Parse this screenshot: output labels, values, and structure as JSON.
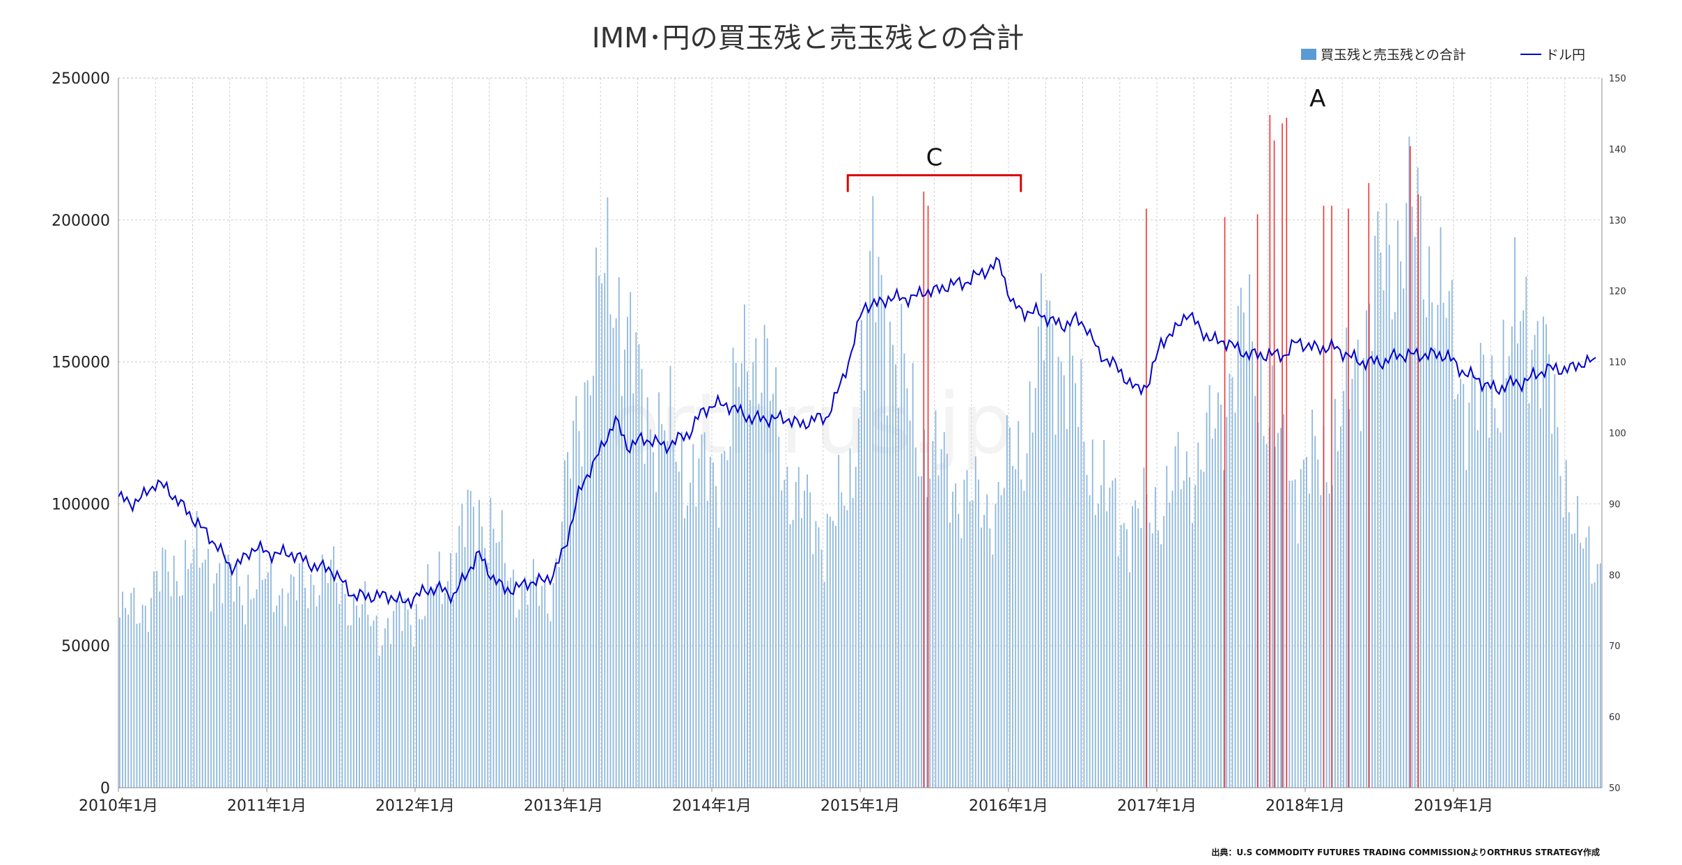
{
  "chart_data": {
    "type": "bar",
    "title": "IMM･円の買玉残と売玉残との合計",
    "source": "出典：U.S COMMODITY FUTURES TRADING COMMISSIONよりORTHRUS STRATEGY作成",
    "watermark": "orthrus.jp",
    "legend": [
      {
        "name": "買玉残と売玉残との合計",
        "color": "#5b9bd5",
        "kind": "bar"
      },
      {
        "name": "ドル円",
        "color": "#0000cc",
        "kind": "line"
      }
    ],
    "colors": {
      "bar": "#8fb8de",
      "highlight": "#ee3333",
      "line": "#0000cc",
      "bracket": "#dd0000"
    },
    "x": {
      "start": "2010-01",
      "end": "2019-12",
      "weeks": 520
    },
    "x_tick_labels": [
      "2010年1月",
      "2011年1月",
      "2012年1月",
      "2013年1月",
      "2014年1月",
      "2015年1月",
      "2016年1月",
      "2017年1月",
      "2018年1月",
      "2019年1月"
    ],
    "y_left": {
      "min": 0,
      "max": 250000,
      "ticks": [
        "0",
        "50000",
        "100000",
        "150000",
        "200000",
        "250000"
      ]
    },
    "y_right": {
      "min": 50,
      "max": 150,
      "ticks": [
        "50",
        "60",
        "70",
        "80",
        "90",
        "100",
        "110",
        "120",
        "130",
        "140",
        "150"
      ]
    },
    "series": [
      {
        "name": "買玉残と売玉残との合計",
        "axis": "left",
        "monthly_level": [
          60000,
          62000,
          65000,
          72000,
          76000,
          78000,
          80000,
          80000,
          76000,
          72000,
          70000,
          72000,
          72000,
          70000,
          68000,
          72000,
          75000,
          74000,
          70000,
          64000,
          60000,
          56000,
          58000,
          60000,
          62000,
          66000,
          72000,
          82000,
          92000,
          98000,
          92000,
          80000,
          72000,
          70000,
          68000,
          70000,
          100000,
          130000,
          150000,
          175000,
          180000,
          160000,
          140000,
          130000,
          125000,
          118000,
          112000,
          110000,
          110000,
          120000,
          140000,
          160000,
          150000,
          130000,
          110000,
          100000,
          95000,
          90000,
          95000,
          105000,
          150000,
          180000,
          170000,
          150000,
          130000,
          120000,
          115000,
          110000,
          105000,
          100000,
          100000,
          100000,
          115000,
          120000,
          140000,
          165000,
          155000,
          140000,
          125000,
          110000,
          100000,
          95000,
          95000,
          95000,
          100000,
          105000,
          110000,
          115000,
          120000,
          130000,
          150000,
          160000,
          150000,
          130000,
          115000,
          110000,
          110000,
          115000,
          120000,
          130000,
          150000,
          170000,
          180000,
          190000,
          200000,
          195000,
          185000,
          170000,
          150000,
          140000,
          135000,
          140000,
          150000,
          160000,
          170000,
          155000,
          130000,
          110000,
          85000,
          80000
        ],
        "annotations": [
          {
            "label": "A",
            "month": 97,
            "value": 238000
          },
          {
            "label": "C",
            "month_from": 59,
            "month_to": 73,
            "value": 215000
          }
        ],
        "highlight_values": [
          {
            "date": "2015-06",
            "value": 210000
          },
          {
            "date": "2015-06",
            "value": 205000
          },
          {
            "date": "2016-12",
            "value": 204000
          },
          {
            "date": "2017-06",
            "value": 201000
          },
          {
            "date": "2017-09",
            "value": 202000
          },
          {
            "date": "2017-10",
            "value": 228000
          },
          {
            "date": "2017-10",
            "value": 237000
          },
          {
            "date": "2017-11",
            "value": 236000
          },
          {
            "date": "2017-11",
            "value": 234000
          },
          {
            "date": "2018-02",
            "value": 205000
          },
          {
            "date": "2018-03",
            "value": 205000
          },
          {
            "date": "2018-04",
            "value": 204000
          },
          {
            "date": "2018-06",
            "value": 213000
          },
          {
            "date": "2018-09",
            "value": 226000
          },
          {
            "date": "2018-10",
            "value": 209000
          }
        ]
      },
      {
        "name": "ドル円",
        "axis": "right",
        "monthly": [
          91,
          90,
          91,
          93,
          92,
          90,
          88,
          86,
          84,
          81,
          82,
          84,
          83,
          83,
          83,
          82,
          81,
          81,
          79,
          77,
          77,
          77,
          77,
          76,
          77,
          78,
          78,
          77,
          80,
          83,
          80,
          78,
          78,
          79,
          79,
          80,
          84,
          91,
          95,
          98,
          102,
          98,
          99,
          99,
          98,
          99,
          100,
          103,
          104,
          104,
          103,
          102,
          102,
          102,
          102,
          101,
          102,
          102,
          106,
          111,
          118,
          118,
          119,
          119,
          119,
          120,
          120,
          121,
          121,
          122,
          123,
          124,
          118,
          117,
          117,
          116,
          115,
          116,
          115,
          111,
          110,
          108,
          106,
          107,
          113,
          114,
          117,
          115,
          113,
          113,
          112,
          111,
          111,
          111,
          111,
          113,
          112,
          112,
          112,
          111,
          110,
          110,
          110,
          111,
          111,
          111,
          111,
          111,
          109,
          108,
          107,
          106,
          107,
          107,
          108,
          109,
          109,
          109,
          110,
          110
        ]
      }
    ]
  }
}
